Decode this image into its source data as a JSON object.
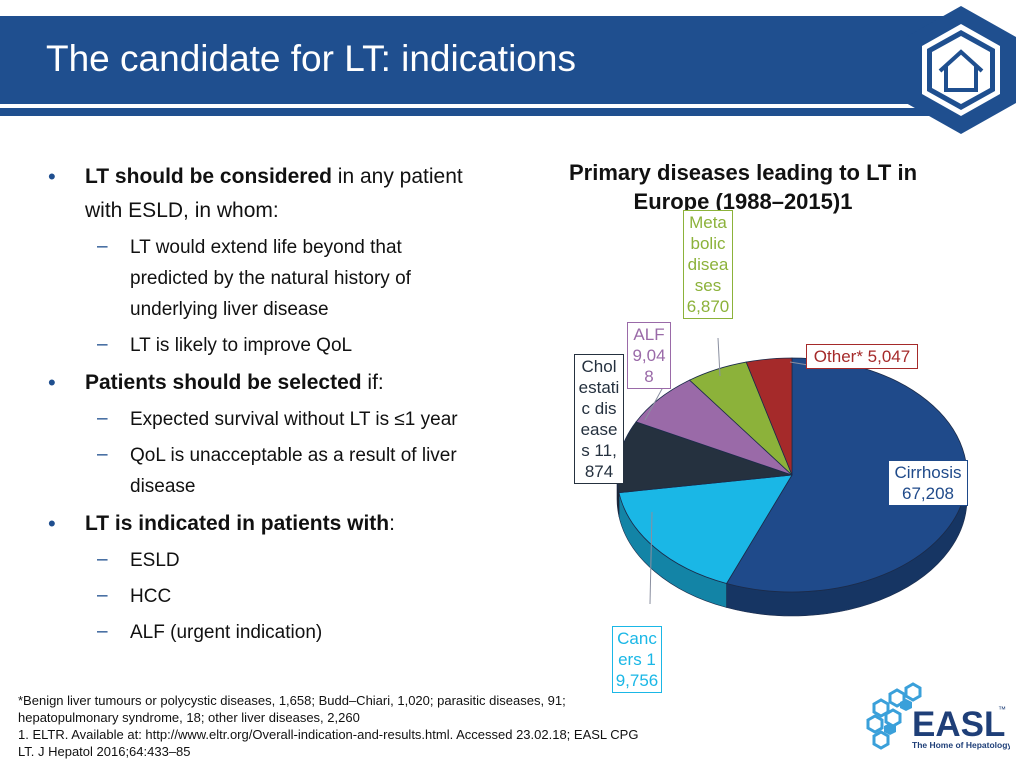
{
  "slide": {
    "title": "The candidate for LT: indications"
  },
  "content": {
    "b1": {
      "strong": "LT should be considered",
      "rest": " in any patient with ESLD, in whom:"
    },
    "b1_subs": [
      "LT would extend life beyond that predicted by the natural history of underlying liver disease",
      "LT is likely to improve QoL"
    ],
    "b2": {
      "strong": "Patients should be selected",
      "rest": " if:"
    },
    "b2_subs": [
      "Expected survival without LT is ≤1 year",
      "QoL is unacceptable as a result of liver disease"
    ],
    "b3": {
      "strong": "LT is indicated in patients with",
      "rest": ":"
    },
    "b3_subs": [
      "ESLD",
      "HCC",
      "ALF (urgent indication)"
    ]
  },
  "footnote": {
    "line1": "*Benign liver tumours or polycystic diseases, 1,658; Budd–Chiari, 1,020; parasitic diseases, 91; hepatopulmonary syndrome, 18; other liver diseases, 2,260",
    "line2": "1. ELTR. Available at: http://www.eltr.org/Overall-indication-and-results.html. Accessed 23.02.18; EASL CPG LT. J Hepatol 2016;64:433–85"
  },
  "logo": {
    "text": "EASL",
    "tagline": "The Home of Hepatology",
    "tm": "™"
  },
  "colors": {
    "brand": "#1f4f8f",
    "cirrhosis": "#1f4a8a",
    "cancers": "#1ab7e6",
    "cholestatic": "#25313f",
    "alf": "#9a6aa8",
    "metabolic": "#8cb23a",
    "other": "#a52a2a"
  },
  "chart_data": {
    "type": "pie",
    "title": "Primary diseases leading to LT in Europe (1988–2015)1",
    "slices": [
      {
        "name": "Cirrhosis",
        "value": 67208,
        "label": "Cirrhosis 67,208"
      },
      {
        "name": "Cancers",
        "value": 19756,
        "label": "Cancers 19,756"
      },
      {
        "name": "Cholestatic diseases",
        "value": 11874,
        "label": "Cholestatic diseases 11,874"
      },
      {
        "name": "ALF",
        "value": 9048,
        "label": "ALF 9,048"
      },
      {
        "name": "Metabolic diseases",
        "value": 6870,
        "label": "Metabolic diseases 6,870"
      },
      {
        "name": "Other*",
        "value": 5047,
        "label": "Other* 5,047"
      }
    ]
  }
}
